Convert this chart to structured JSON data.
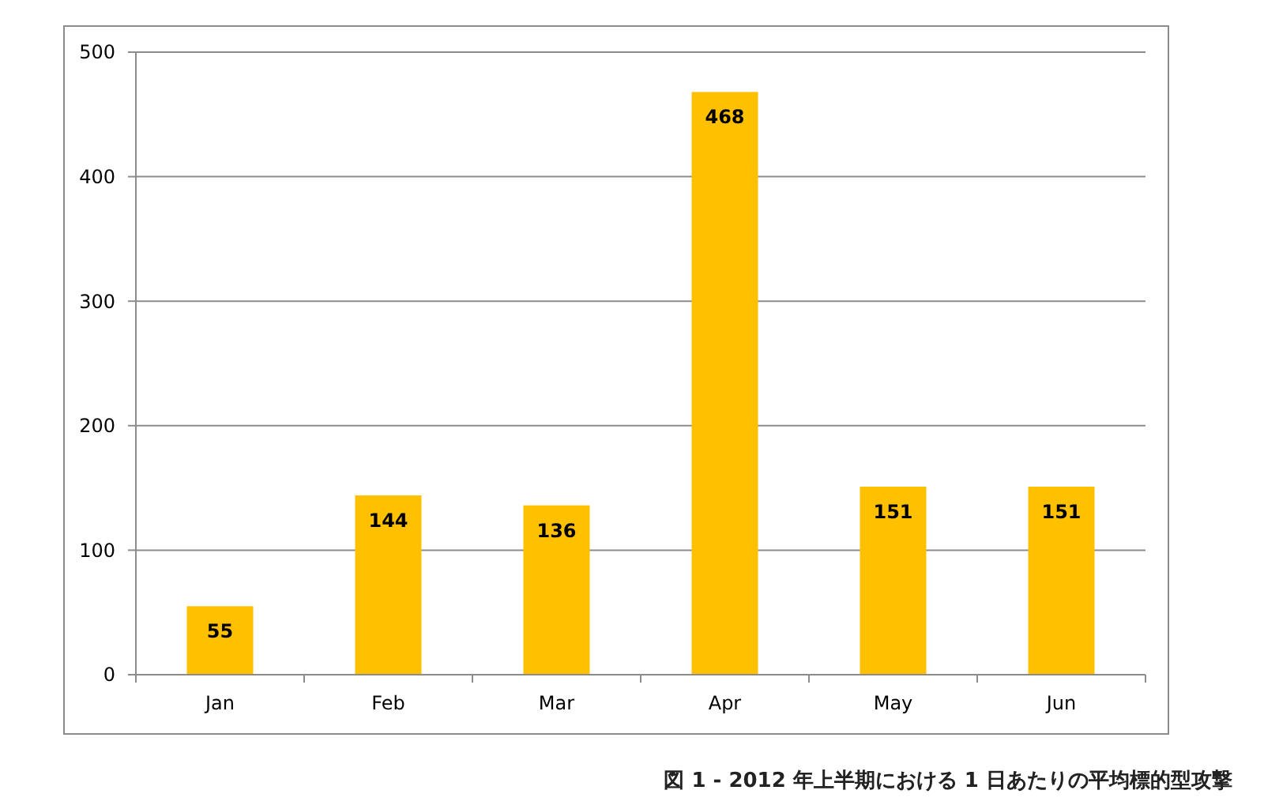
{
  "chart_data": {
    "type": "bar",
    "categories": [
      "Jan",
      "Feb",
      "Mar",
      "Apr",
      "May",
      "Jun"
    ],
    "values": [
      55,
      144,
      136,
      468,
      151,
      151
    ],
    "color": "#ffc000",
    "ylim": [
      0,
      500
    ],
    "yticks": [
      0,
      100,
      200,
      300,
      400,
      500
    ],
    "grid": "y",
    "data_labels": true,
    "annotations": [
      "図 1 - 2012 年上半期における 1 日あたりの平均標的型攻撃"
    ]
  }
}
